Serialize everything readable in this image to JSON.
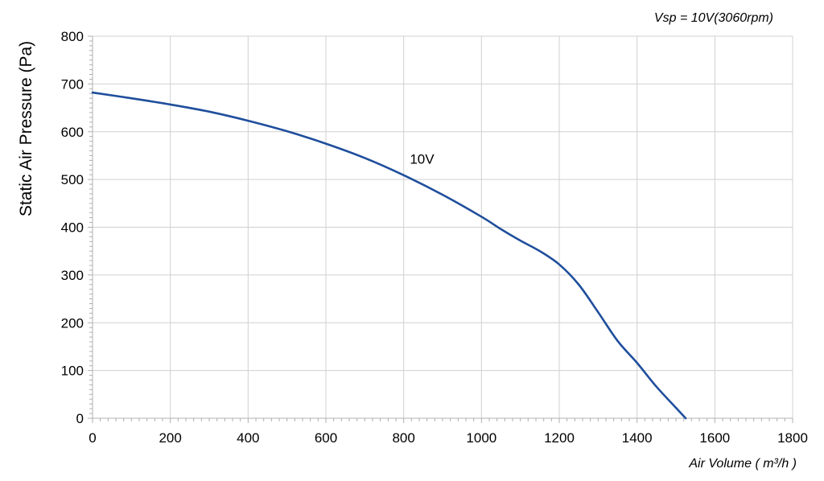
{
  "chart_data": {
    "type": "line",
    "title": "",
    "annotation": "Vsp = 10V(3060rpm)",
    "xlabel": "Air Volume ( m³/h )",
    "ylabel": "Static Air Pressure  (Pa)",
    "xlim": [
      0,
      1800
    ],
    "ylim": [
      0,
      800
    ],
    "xticks": [
      0,
      200,
      400,
      600,
      800,
      1000,
      1200,
      1400,
      1600,
      1800
    ],
    "yticks": [
      0,
      100,
      200,
      300,
      400,
      500,
      600,
      700,
      800
    ],
    "grid": true,
    "series": [
      {
        "name": "10V",
        "color": "#1f4e9c",
        "x": [
          0,
          100,
          200,
          300,
          400,
          500,
          600,
          700,
          800,
          900,
          1000,
          1050,
          1100,
          1150,
          1200,
          1250,
          1300,
          1350,
          1400,
          1450,
          1500,
          1525
        ],
        "y": [
          682,
          670,
          657,
          642,
          623,
          601,
          575,
          545,
          509,
          468,
          422,
          396,
          372,
          350,
          322,
          280,
          222,
          162,
          116,
          66,
          22,
          0
        ]
      }
    ]
  }
}
